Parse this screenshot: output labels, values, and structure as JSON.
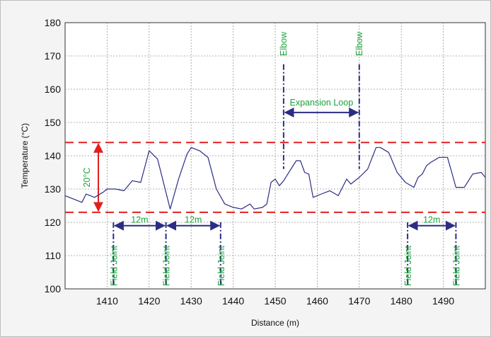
{
  "chart_data": {
    "type": "line",
    "xlabel": "Distance (m)",
    "ylabel": "Temperature (°C)",
    "xlim": [
      1400,
      1500
    ],
    "ylim": [
      100,
      180
    ],
    "x_ticks": [
      1410,
      1420,
      1430,
      1440,
      1450,
      1460,
      1470,
      1480,
      1490
    ],
    "y_ticks": [
      100,
      110,
      120,
      130,
      140,
      150,
      160,
      170,
      180
    ],
    "grid": true,
    "colors": {
      "line": "#2b2d84",
      "limit": "#e02020",
      "band": "#e02020",
      "marker": "#2b2d84",
      "text": "#1aa33a"
    },
    "series": [
      {
        "x": [
          1400,
          1404,
          1405,
          1407,
          1409,
          1410,
          1412,
          1414,
          1416,
          1418,
          1420,
          1422,
          1425,
          1427,
          1429,
          1430,
          1432,
          1434,
          1436,
          1438,
          1440,
          1442,
          1444,
          1445,
          1447,
          1448,
          1449,
          1450,
          1451,
          1452,
          1453,
          1455,
          1456,
          1457,
          1458,
          1459,
          1461,
          1463,
          1465,
          1467,
          1468,
          1470,
          1472,
          1474,
          1475,
          1477,
          1479,
          1481,
          1483,
          1484,
          1485,
          1486,
          1487,
          1489,
          1491,
          1492,
          1493,
          1495,
          1497,
          1499,
          1500
        ],
        "y": [
          128,
          126,
          128.5,
          127.5,
          129,
          130,
          130,
          129.5,
          132.5,
          132,
          141.5,
          139,
          124,
          133,
          140.5,
          142.5,
          141.5,
          139.5,
          130,
          125.5,
          124.5,
          124,
          125.5,
          124,
          124.5,
          125.5,
          132,
          133,
          131,
          132.5,
          134.5,
          138.5,
          138.5,
          135,
          134.5,
          127.5,
          128.5,
          129.5,
          128,
          133,
          131.5,
          133.5,
          136,
          142.5,
          142.5,
          141,
          135,
          132,
          130.5,
          133.5,
          134.5,
          137,
          138,
          139.5,
          139.5,
          135,
          130.5,
          130.5,
          134.5,
          135,
          133.5
        ]
      }
    ],
    "limits": {
      "upper": 144,
      "lower": 123
    },
    "band_label": "20°C",
    "field_joints": {
      "label": "Field Joint",
      "positions": [
        1411.5,
        1424,
        1437,
        1481.5,
        1493
      ],
      "spans": [
        {
          "from": 1411.5,
          "to": 1424,
          "label": "12m"
        },
        {
          "from": 1424,
          "to": 1437,
          "label": "12m"
        },
        {
          "from": 1481.5,
          "to": 1493,
          "label": "12m"
        }
      ]
    },
    "elbows": {
      "label": "Elbow",
      "positions": [
        1452,
        1470
      ]
    },
    "expansion_loop": {
      "from": 1452,
      "to": 1470,
      "label": "Expansion Loop"
    }
  }
}
